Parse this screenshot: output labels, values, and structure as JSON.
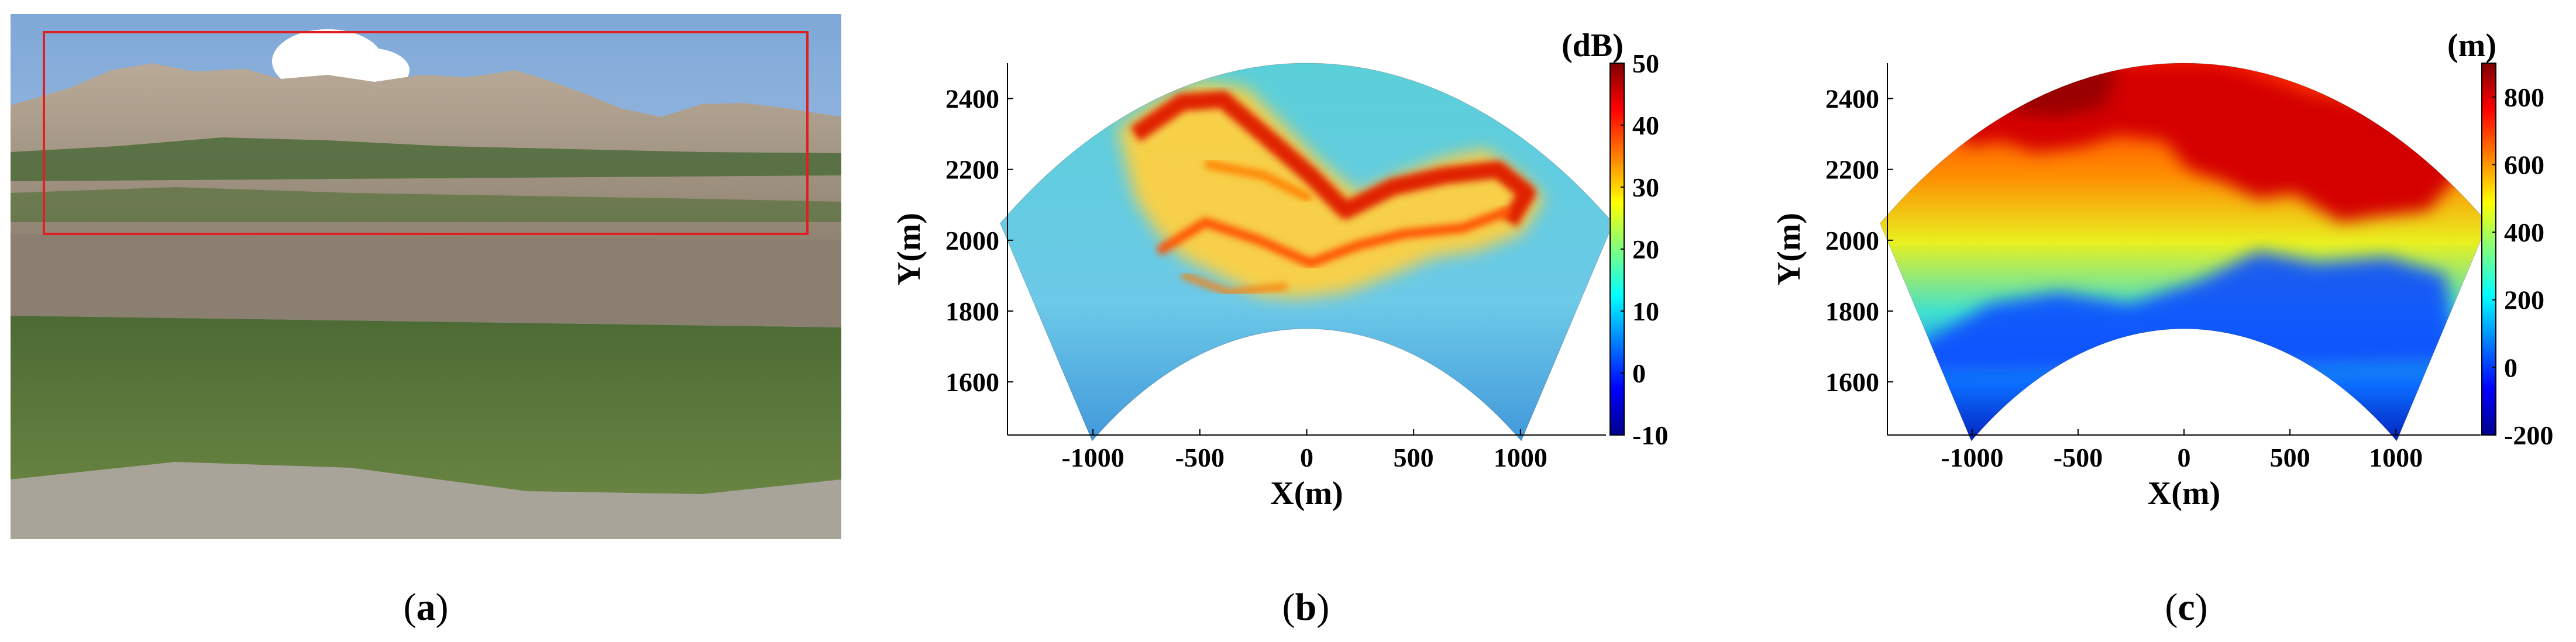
{
  "captions": [
    "(a)",
    "(b)",
    "(c)"
  ],
  "caption_letters": [
    "a",
    "b",
    "c"
  ],
  "photo": {
    "description_name": "cliff-photo",
    "highlight_color": "#e02020"
  },
  "chart_data": [
    {
      "type": "heatmap",
      "title": "",
      "xlabel": "X(m)",
      "ylabel": "Y(m)",
      "xlim": [
        -1400,
        1400
      ],
      "ylim": [
        1450,
        2500
      ],
      "xticks": [
        -1000,
        -500,
        0,
        500,
        1000
      ],
      "xtick_labels": [
        "-1000",
        "-500",
        "0",
        "500",
        "1000"
      ],
      "yticks": [
        1600,
        1800,
        2000,
        2200,
        2400
      ],
      "ytick_labels": [
        "1600",
        "1800",
        "2000",
        "2200",
        "2400"
      ],
      "colorbar": {
        "label": "(dB)",
        "min": -10,
        "max": 50,
        "ticks": [
          -10,
          0,
          10,
          20,
          30,
          40,
          50
        ],
        "tick_labels": [
          "-10",
          "0",
          "10",
          "20",
          "30",
          "40",
          "50"
        ],
        "colormap": "jet"
      },
      "sector": {
        "inner_radius": 1750,
        "outer_radius": 2500,
        "half_angle_deg": 35
      }
    },
    {
      "type": "heatmap",
      "title": "",
      "xlabel": "X(m)",
      "ylabel": "Y(m)",
      "xlim": [
        -1400,
        1400
      ],
      "ylim": [
        1450,
        2500
      ],
      "xticks": [
        -1000,
        -500,
        0,
        500,
        1000
      ],
      "xtick_labels": [
        "-1000",
        "-500",
        "0",
        "500",
        "1000"
      ],
      "yticks": [
        1600,
        1800,
        2000,
        2200,
        2400
      ],
      "ytick_labels": [
        "1600",
        "1800",
        "2000",
        "2200",
        "2400"
      ],
      "colorbar": {
        "label": "(m)",
        "min": -200,
        "max": 900,
        "ticks": [
          -200,
          0,
          200,
          400,
          600,
          800
        ],
        "tick_labels": [
          "-200",
          "0",
          "200",
          "400",
          "600",
          "800"
        ],
        "colormap": "jet"
      },
      "sector": {
        "inner_radius": 1750,
        "outer_radius": 2500,
        "half_angle_deg": 35
      }
    }
  ]
}
